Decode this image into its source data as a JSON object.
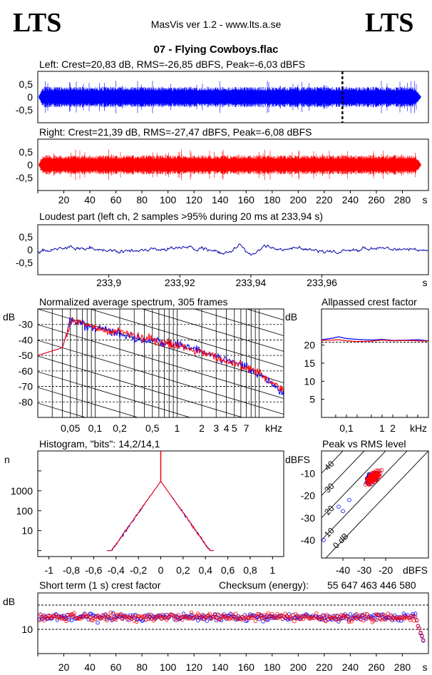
{
  "header": {
    "logo_left": "LTS",
    "logo_right": "LTS",
    "app_line": "MasVis ver 1.2 - www.lts.a.se",
    "track": "07 - Flying Cowboys.flac"
  },
  "colors": {
    "left": "#0000ff",
    "right": "#ff0000",
    "loud": "#0000aa"
  },
  "chart_data": [
    {
      "type": "line",
      "id": "left-waveform",
      "title": "Left: Crest=20,83 dB, RMS=-26,85 dBFS, Peak=-6,03 dBFS",
      "yticks": [
        "0,5",
        "0",
        "-0,5"
      ],
      "ylim": [
        -1,
        1
      ],
      "xlim": [
        0,
        300
      ],
      "envelope_amplitude": 0.45,
      "marker_x": 233.94
    },
    {
      "type": "line",
      "id": "right-waveform",
      "title": "Right: Crest=21,39 dB, RMS=-27,47 dBFS, Peak=-6,08 dBFS",
      "yticks": [
        "0,5",
        "0",
        "-0,5"
      ],
      "ylim": [
        -1,
        1
      ],
      "xlim": [
        0,
        300
      ],
      "envelope_amplitude": 0.42,
      "xticks": [
        "20",
        "40",
        "60",
        "80",
        "100",
        "120",
        "140",
        "160",
        "180",
        "200",
        "220",
        "240",
        "260",
        "280"
      ],
      "xunit": "s"
    },
    {
      "type": "line",
      "id": "loudest-part",
      "title": "Loudest part (left  ch, 2 samples >95% during 20 ms at 233,94 s)",
      "yticks": [
        "0,5",
        "0",
        "-0,5"
      ],
      "ylim": [
        -1,
        1
      ],
      "xlim": [
        233.88,
        233.99
      ],
      "xticks": [
        "233,9",
        "233,92",
        "233,94",
        "233,96"
      ],
      "xunit": "s"
    },
    {
      "type": "line",
      "id": "average-spectrum",
      "title": "Normalized average spectrum, 305 frames",
      "ylabel": "dB",
      "yticks": [
        "-30",
        "-40",
        "-50",
        "-60",
        "-70",
        "-80"
      ],
      "ylim": [
        -90,
        -20
      ],
      "xticks": [
        "0,05",
        "0,1",
        "0,2",
        "0,5",
        "1",
        "2",
        "3",
        "4",
        "5",
        "7"
      ],
      "xunit": "kHz",
      "xlim_khz": [
        0.02,
        20
      ],
      "series": [
        {
          "points": [
            [
              0.02,
              -50
            ],
            [
              0.04,
              -45
            ],
            [
              0.05,
              -27
            ],
            [
              0.08,
              -31
            ],
            [
              0.1,
              -32
            ],
            [
              0.2,
              -36
            ],
            [
              0.5,
              -41
            ],
            [
              1,
              -43
            ],
            [
              2,
              -47
            ],
            [
              5,
              -54
            ],
            [
              10,
              -62
            ],
            [
              20,
              -75
            ]
          ]
        },
        {
          "points": [
            [
              0.02,
              -50
            ],
            [
              0.04,
              -45
            ],
            [
              0.05,
              -28
            ],
            [
              0.08,
              -30
            ],
            [
              0.1,
              -33
            ],
            [
              0.2,
              -35
            ],
            [
              0.5,
              -40
            ],
            [
              1,
              -44
            ],
            [
              2,
              -48
            ],
            [
              5,
              -55
            ],
            [
              10,
              -61
            ],
            [
              20,
              -73
            ]
          ]
        }
      ]
    },
    {
      "type": "line",
      "id": "allpassed-crest",
      "title": "Allpassed crest factor",
      "ylabel": "dB",
      "yticks": [
        "20",
        "15",
        "10",
        "5"
      ],
      "ylim": [
        0,
        25
      ],
      "xticks": [
        "0,1",
        "1",
        "2"
      ],
      "xunit": "kHz",
      "xlim_khz": [
        0.02,
        20
      ],
      "series": [
        {
          "points": [
            [
              0.02,
              21.5
            ],
            [
              0.04,
              21.9
            ],
            [
              0.06,
              22.3
            ],
            [
              0.1,
              21.8
            ],
            [
              0.2,
              21.6
            ],
            [
              0.5,
              21.4
            ],
            [
              1,
              21.6
            ],
            [
              2,
              21.3
            ],
            [
              5,
              21.4
            ],
            [
              10,
              21.5
            ],
            [
              20,
              21.2
            ]
          ]
        },
        {
          "points": [
            [
              0.02,
              21.3
            ],
            [
              0.04,
              21.4
            ],
            [
              0.06,
              21.5
            ],
            [
              0.1,
              21.2
            ],
            [
              0.2,
              21.0
            ],
            [
              0.5,
              21.1
            ],
            [
              1,
              21.4
            ],
            [
              2,
              21.2
            ],
            [
              5,
              21.3
            ],
            [
              10,
              21.2
            ],
            [
              20,
              21.1
            ]
          ]
        }
      ],
      "reference_db": 20.8
    },
    {
      "type": "line",
      "id": "histogram",
      "title": "Histogram, \"bits\": 14,2/14,1",
      "ylabel": "n",
      "yticks": [
        "1000",
        "10"
      ],
      "yticks_minor": [
        "100"
      ],
      "xticks": [
        "-1",
        "-0,8",
        "-0,6",
        "-0,4",
        "-0,2",
        "0",
        "0,2",
        "0,4",
        "0,6",
        "0,8",
        "1"
      ],
      "xlim": [
        -1.1,
        1.1
      ],
      "ylim_log": [
        0.5,
        100000
      ],
      "peak_count": 3000,
      "range": [
        -0.48,
        0.48
      ]
    },
    {
      "type": "scatter",
      "id": "peak-vs-rms",
      "title": "Peak vs RMS level",
      "ylabel": "dBFS",
      "xlabel": "dBFS",
      "yticks": [
        "-10",
        "-20",
        "-30",
        "-40"
      ],
      "ylim": [
        -48,
        0
      ],
      "xticks": [
        "-40",
        "-30",
        "-20"
      ],
      "xlim": [
        -50,
        0
      ],
      "diagonal_labels": [
        "40",
        "30",
        "20",
        "10",
        "0 dB"
      ],
      "cluster_center": [
        -26,
        -12
      ]
    },
    {
      "type": "scatter",
      "id": "short-term-crest",
      "title": "Short term (1 s) crest factor",
      "ylabel": "dB",
      "yticks": [
        "10"
      ],
      "ylim": [
        0,
        25
      ],
      "xticks": [
        "20",
        "40",
        "60",
        "80",
        "100",
        "120",
        "140",
        "160",
        "180",
        "200",
        "220",
        "240",
        "260",
        "280"
      ],
      "xunit": "s",
      "xlim": [
        0,
        300
      ],
      "mean_db": 15
    }
  ],
  "checksum": {
    "label": "Checksum (energy):",
    "value": "55 647 463 446 580"
  }
}
